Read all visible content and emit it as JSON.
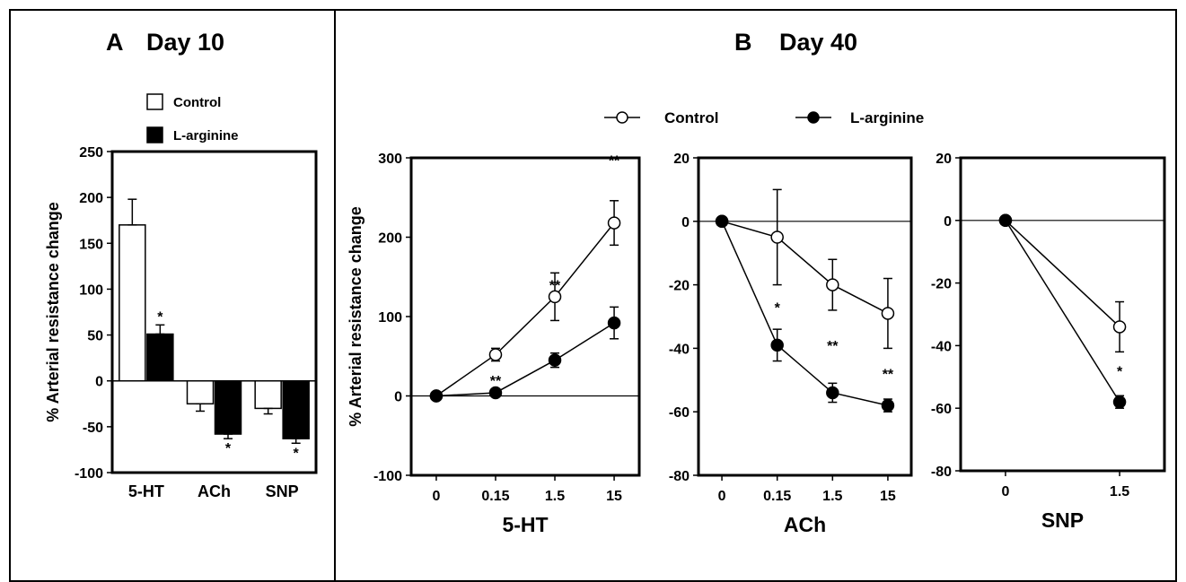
{
  "panel_a": {
    "label": "A",
    "title": "Day 10",
    "legend": {
      "control": "Control",
      "treated": "L-arginine"
    }
  },
  "panel_b": {
    "label": "B",
    "title": "Day 40",
    "legend": {
      "control": "Control",
      "treated": "L-arginine"
    }
  },
  "colors": {
    "control_fill": "#ffffff",
    "treated_fill": "#000000",
    "ink": "#000000"
  },
  "chart_data": [
    {
      "type": "bar",
      "panel": "A Day 10",
      "ylabel": "% Arterial resistance change",
      "xlabel": "",
      "ylim": [
        -100,
        250
      ],
      "yticks": [
        -100,
        -50,
        0,
        50,
        100,
        150,
        200,
        250
      ],
      "categories": [
        "5-HT",
        "ACh",
        "SNP"
      ],
      "series": [
        {
          "name": "Control",
          "values": [
            170,
            -25,
            -30
          ],
          "errors": [
            28,
            8,
            6
          ]
        },
        {
          "name": "L-arginine",
          "values": [
            51,
            -58,
            -63
          ],
          "errors": [
            10,
            5,
            5
          ]
        }
      ],
      "annotations": [
        {
          "category": "5-HT",
          "series": "L-arginine",
          "text": "*"
        },
        {
          "category": "ACh",
          "series": "L-arginine",
          "text": "*"
        },
        {
          "category": "SNP",
          "series": "L-arginine",
          "text": "*"
        }
      ],
      "legend_position": "top"
    },
    {
      "type": "line",
      "panel": "B Day 40 5-HT",
      "ylabel": "% Arterial resistance change",
      "xlabel": "5-HT",
      "x": [
        "0",
        "0.15",
        "1.5",
        "15"
      ],
      "ylim": [
        -100,
        300
      ],
      "yticks": [
        -100,
        0,
        100,
        200,
        300
      ],
      "series": [
        {
          "name": "Control",
          "values": [
            0,
            52,
            125,
            218
          ],
          "errors": [
            0,
            8,
            30,
            28
          ]
        },
        {
          "name": "L-arginine",
          "values": [
            0,
            4,
            45,
            92
          ],
          "errors": [
            0,
            3,
            9,
            20
          ]
        }
      ],
      "annotations": [
        {
          "x": "0.15",
          "y": 20,
          "text": "**"
        },
        {
          "x": "1.5",
          "y": 140,
          "text": "**"
        },
        {
          "x": "15",
          "y": 297,
          "text": "**"
        }
      ]
    },
    {
      "type": "line",
      "panel": "B Day 40 ACh",
      "ylabel": "",
      "xlabel": "ACh",
      "x": [
        "0",
        "0.15",
        "1.5",
        "15"
      ],
      "ylim": [
        -80,
        20
      ],
      "yticks": [
        -80,
        -60,
        -40,
        -20,
        0,
        20
      ],
      "series": [
        {
          "name": "Control",
          "values": [
            0,
            -5,
            -20,
            -29
          ],
          "errors": [
            0,
            15,
            8,
            11
          ]
        },
        {
          "name": "L-arginine",
          "values": [
            0,
            -39,
            -54,
            -58
          ],
          "errors": [
            0,
            5,
            3,
            2
          ]
        }
      ],
      "annotations": [
        {
          "x": "0.15",
          "y": -27,
          "text": "*"
        },
        {
          "x": "1.5",
          "y": -39,
          "text": "**"
        },
        {
          "x": "15",
          "y": -48,
          "text": "**"
        }
      ]
    },
    {
      "type": "line",
      "panel": "B Day 40 SNP",
      "ylabel": "",
      "xlabel": "SNP",
      "x": [
        "0",
        "1.5"
      ],
      "ylim": [
        -80,
        20
      ],
      "yticks": [
        -80,
        -60,
        -40,
        -20,
        0,
        20
      ],
      "series": [
        {
          "name": "Control",
          "values": [
            0,
            -34
          ],
          "errors": [
            0,
            8
          ]
        },
        {
          "name": "L-arginine",
          "values": [
            0,
            -58
          ],
          "errors": [
            0,
            2
          ]
        }
      ],
      "annotations": [
        {
          "x": "1.5",
          "y": -48,
          "text": "*"
        }
      ]
    }
  ]
}
